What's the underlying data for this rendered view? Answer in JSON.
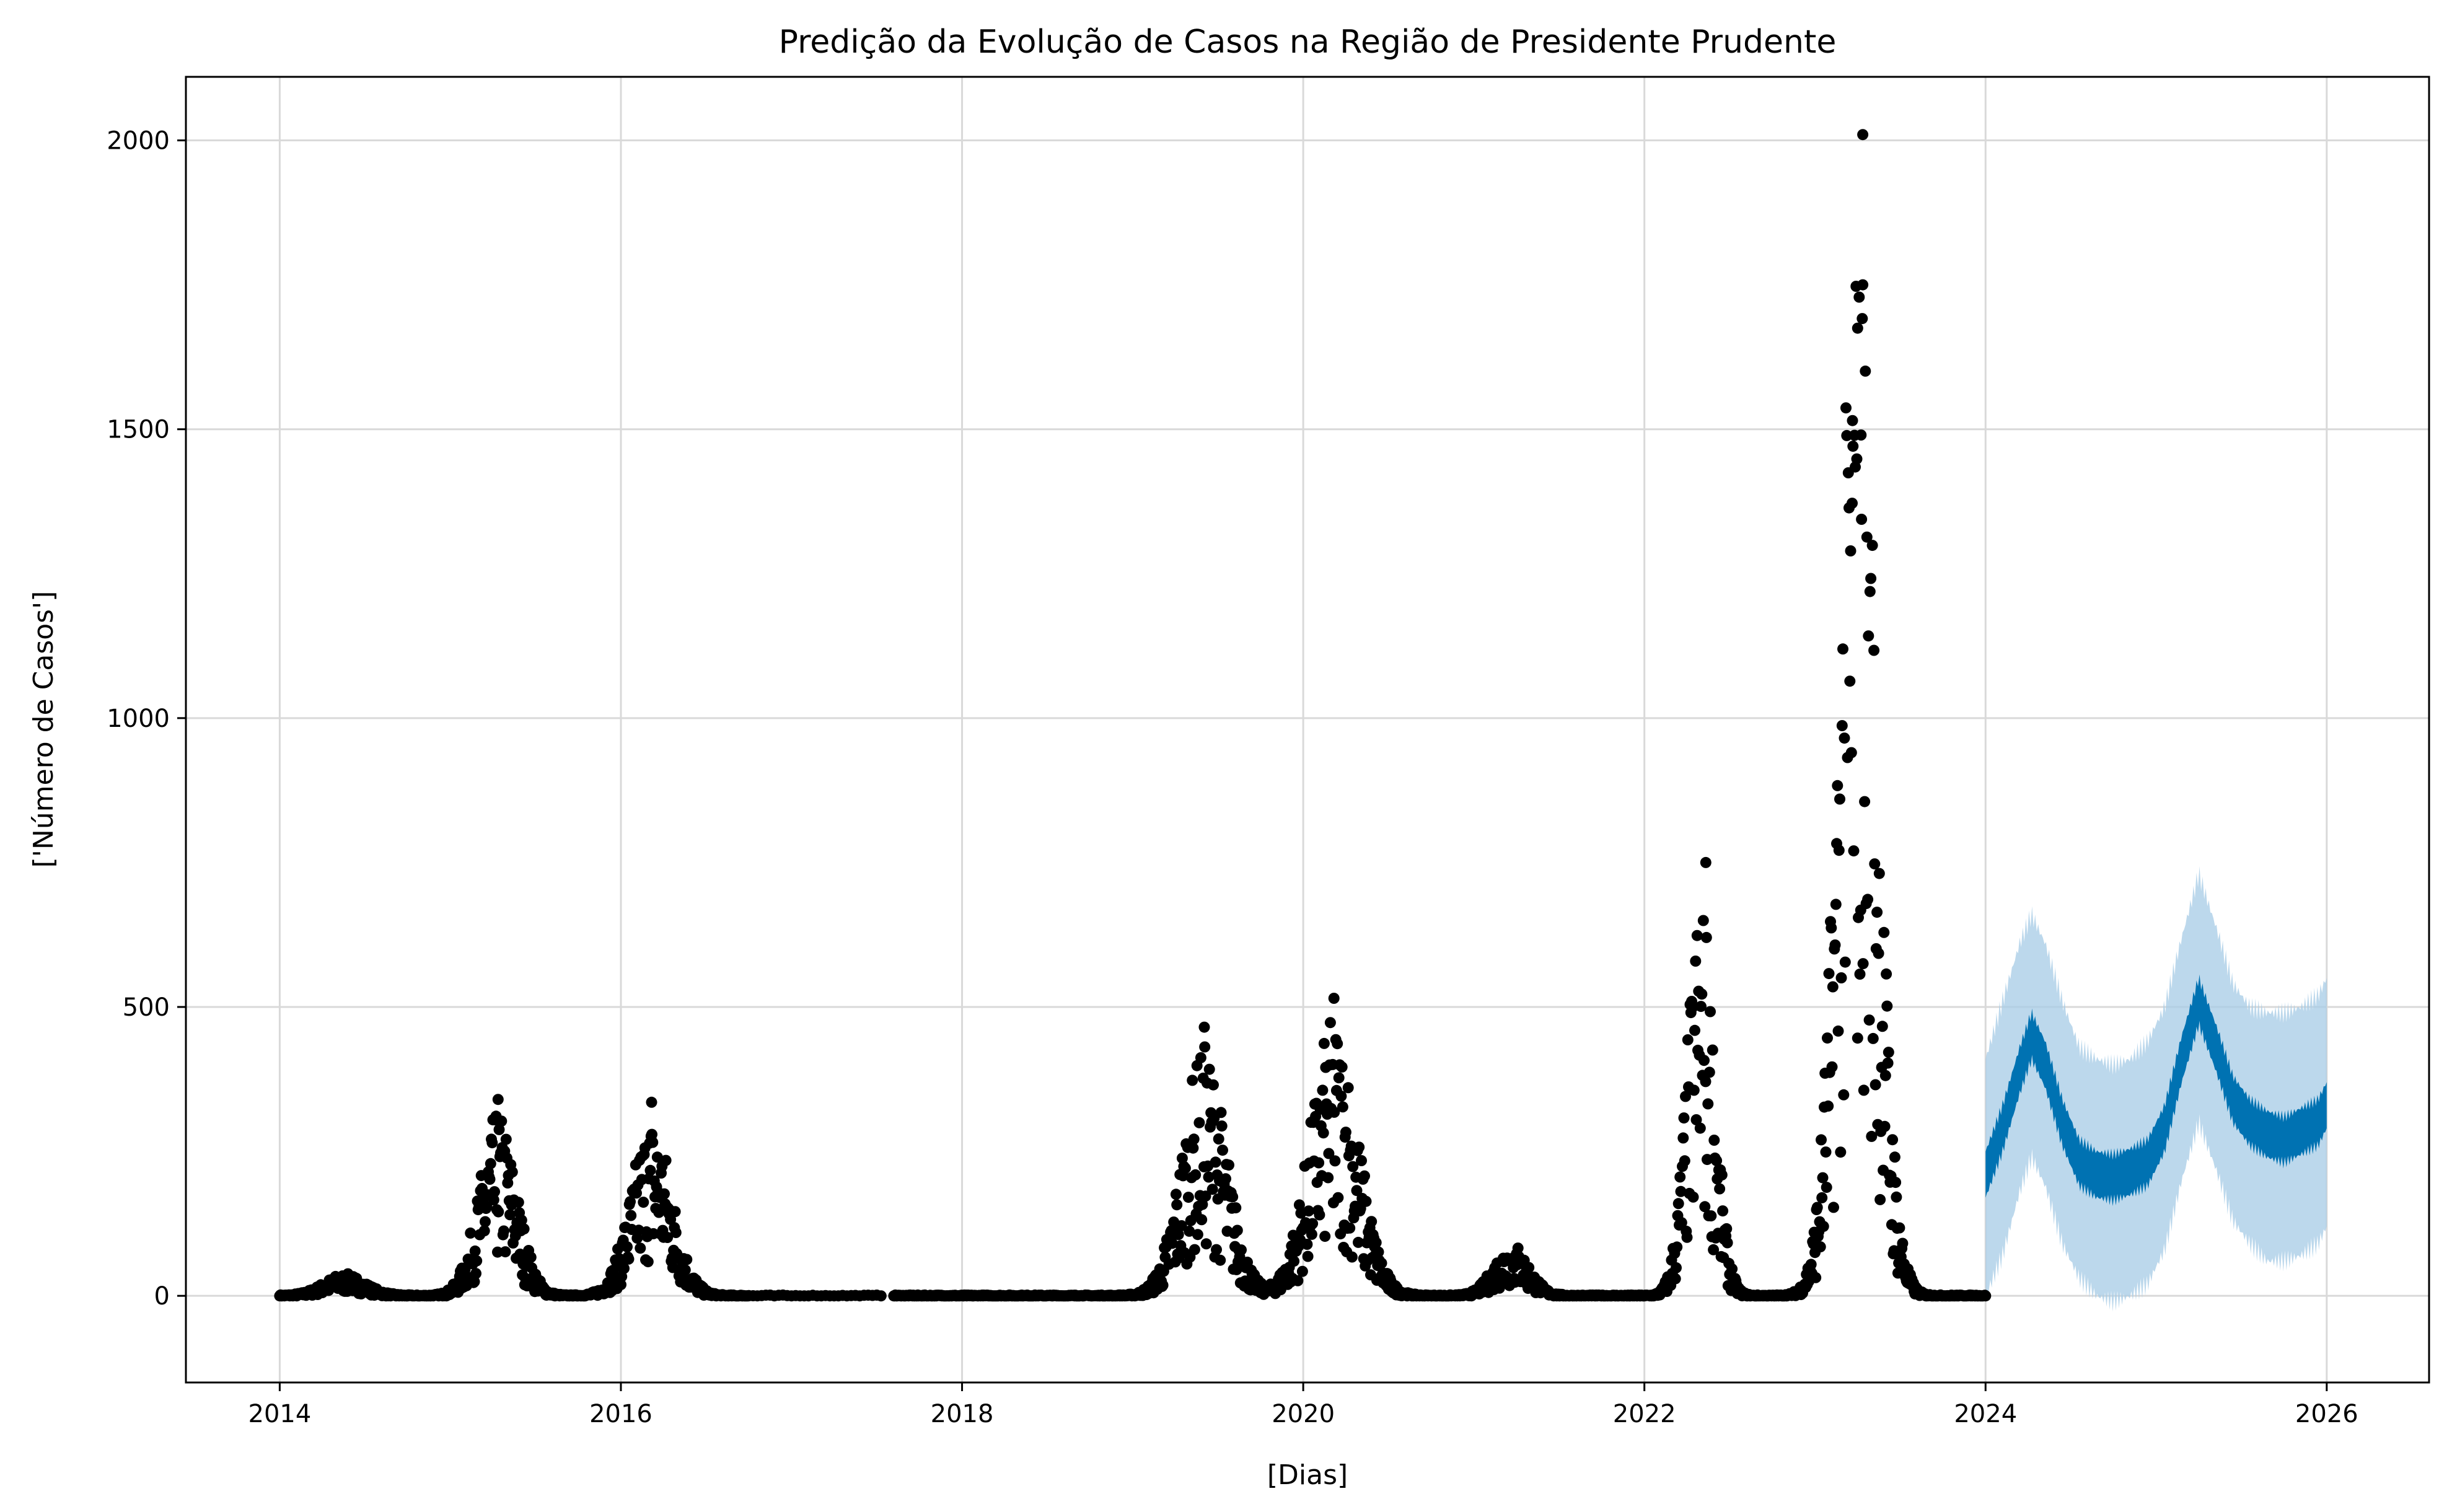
{
  "chart_data": {
    "type": "scatter",
    "title": "Predição da Evolução de Casos na Região de Presidente Prudente",
    "xlabel": "[Dias]",
    "ylabel": "['Número de Casos']",
    "xlim": [
      2013.45,
      2026.6
    ],
    "ylim": [
      -150,
      2110
    ],
    "x_ticks": [
      2014,
      2016,
      2018,
      2020,
      2022,
      2024,
      2026
    ],
    "x_tick_labels": [
      "2014",
      "2016",
      "2018",
      "2020",
      "2022",
      "2024",
      "2026"
    ],
    "y_ticks": [
      0,
      500,
      1000,
      1500,
      2000
    ],
    "y_tick_labels": [
      "0",
      "500",
      "1000",
      "1500",
      "2000"
    ],
    "grid": true,
    "colors": {
      "observed": "#000000",
      "forecast": "#0072B2",
      "uncertainty": "#a6cbe6",
      "grid": "#d9d9d9"
    },
    "series": [
      {
        "kind": "observed-points",
        "epidemic_peaks": [
          {
            "center": 2014.38,
            "peak": 40,
            "width": 0.12
          },
          {
            "center": 2015.28,
            "peak": 340,
            "width": 0.11
          },
          {
            "center": 2016.18,
            "peak": 335,
            "width": 0.12
          },
          {
            "center": 2019.42,
            "peak": 465,
            "width": 0.13
          },
          {
            "center": 2020.18,
            "peak": 515,
            "width": 0.14
          },
          {
            "center": 2021.22,
            "peak": 100,
            "width": 0.1
          },
          {
            "center": 2022.33,
            "peak": 750,
            "width": 0.08
          },
          {
            "center": 2023.25,
            "peak": 2010,
            "width": 0.11
          }
        ],
        "point_ranges": [
          {
            "x_from": 2014.0,
            "x_to": 2016.75
          },
          {
            "x_from": 2016.75,
            "x_to": 2017.55
          },
          {
            "x_from": 2017.6,
            "x_to": 2024.0
          }
        ],
        "notable_points": [
          {
            "x": 2023.28,
            "y": 2010
          },
          {
            "x": 2023.28,
            "y": 1750
          },
          {
            "x": 2023.25,
            "y": 1675
          },
          {
            "x": 2023.22,
            "y": 1515
          },
          {
            "x": 2023.27,
            "y": 1490
          },
          {
            "x": 2022.36,
            "y": 750
          },
          {
            "x": 2020.18,
            "y": 515
          },
          {
            "x": 2019.42,
            "y": 465
          },
          {
            "x": 2015.28,
            "y": 340
          },
          {
            "x": 2016.18,
            "y": 335
          }
        ]
      },
      {
        "kind": "forecast",
        "x": [
          2024.0,
          2024.1,
          2024.2,
          2024.27,
          2024.35,
          2024.45,
          2024.55,
          2024.65,
          2024.75,
          2024.85,
          2024.95,
          2025.05,
          2025.15,
          2025.25,
          2025.35,
          2025.45,
          2025.55,
          2025.65,
          2025.75,
          2025.85,
          2025.95,
          2026.0
        ],
        "yhat": [
          210,
          290,
          390,
          450,
          400,
          300,
          230,
          210,
          205,
          215,
          230,
          290,
          410,
          510,
          430,
          340,
          300,
          280,
          270,
          285,
          300,
          330
        ],
        "yhat_lower": [
          0,
          70,
          180,
          240,
          190,
          90,
          30,
          0,
          -10,
          0,
          20,
          80,
          200,
          300,
          220,
          130,
          90,
          60,
          60,
          70,
          90,
          120
        ],
        "yhat_upper": [
          410,
          510,
          610,
          660,
          610,
          510,
          430,
          410,
          400,
          410,
          440,
          500,
          620,
          730,
          640,
          540,
          500,
          490,
          490,
          500,
          520,
          550
        ]
      }
    ]
  }
}
